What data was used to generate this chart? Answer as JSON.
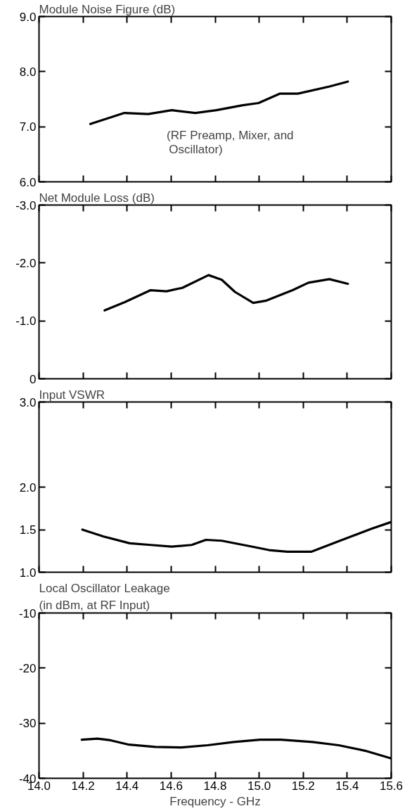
{
  "chart_data": [
    {
      "type": "line",
      "title": "Module Noise Figure (dB)",
      "annotations": [
        "(RF Preamp, Mixer, and\nOscillator)"
      ],
      "x": [
        14.233,
        14.388,
        14.496,
        14.603,
        14.71,
        14.806,
        14.925,
        14.997,
        15.093,
        15.176,
        15.319,
        15.403
      ],
      "series": [
        {
          "color": "#000000",
          "values": [
            7.05,
            7.25,
            7.23,
            7.3,
            7.25,
            7.3,
            7.39,
            7.43,
            7.6,
            7.6,
            7.73,
            7.82
          ]
        }
      ],
      "xlim": [
        14.0,
        15.6
      ],
      "xticks": [
        {
          "value": 14.0,
          "label": null
        },
        {
          "value": 14.2,
          "label": null
        },
        {
          "value": 14.4,
          "label": null
        },
        {
          "value": 14.6,
          "label": null
        },
        {
          "value": 14.8,
          "label": null
        },
        {
          "value": 15.0,
          "label": null
        },
        {
          "value": 15.2,
          "label": null
        },
        {
          "value": 15.4,
          "label": null
        },
        {
          "value": 15.6,
          "label": null
        }
      ],
      "ylim": [
        6,
        9
      ],
      "yticks": [
        {
          "value": 6,
          "label": "6.0"
        },
        {
          "value": 7,
          "label": "7.0"
        },
        {
          "value": 8,
          "label": "8.0"
        },
        {
          "value": 9,
          "label": "9.0"
        }
      ],
      "tick_labels": "y",
      "grid": false,
      "marker": "none",
      "line_style": "solid"
    },
    {
      "type": "line",
      "title": "Net Module Loss (dB)",
      "x": [
        14.298,
        14.388,
        14.507,
        14.579,
        14.651,
        14.77,
        14.83,
        14.89,
        14.973,
        15.033,
        15.152,
        15.224,
        15.319,
        15.403
      ],
      "series": [
        {
          "color": "#000000",
          "values": [
            -1.18,
            -1.32,
            -1.53,
            -1.51,
            -1.57,
            -1.79,
            -1.71,
            -1.5,
            -1.31,
            -1.35,
            -1.53,
            -1.66,
            -1.72,
            -1.64
          ]
        }
      ],
      "xlim": [
        14.0,
        15.6
      ],
      "xticks": [
        {
          "value": 14.0,
          "label": null
        },
        {
          "value": 14.2,
          "label": null
        },
        {
          "value": 14.4,
          "label": null
        },
        {
          "value": 14.6,
          "label": null
        },
        {
          "value": 14.8,
          "label": null
        },
        {
          "value": 15.0,
          "label": null
        },
        {
          "value": 15.2,
          "label": null
        },
        {
          "value": 15.4,
          "label": null
        },
        {
          "value": 15.6,
          "label": null
        }
      ],
      "ylim": [
        0,
        -3
      ],
      "yticks": [
        0,
        {
          "value": -1,
          "label": "-1.0"
        },
        {
          "value": -2,
          "label": "-2.0"
        },
        {
          "value": -3,
          "label": "-3.0"
        }
      ],
      "tick_labels": "y",
      "grid": false,
      "marker": "none",
      "line_style": "solid"
    },
    {
      "type": "line",
      "title": "Input VSWR",
      "x": [
        14.197,
        14.293,
        14.412,
        14.507,
        14.603,
        14.693,
        14.758,
        14.83,
        14.949,
        15.045,
        15.128,
        15.236,
        15.367,
        15.51,
        15.6
      ],
      "series": [
        {
          "color": "#000000",
          "values": [
            1.5,
            1.42,
            1.34,
            1.32,
            1.3,
            1.32,
            1.38,
            1.37,
            1.31,
            1.26,
            1.24,
            1.24,
            1.37,
            1.51,
            1.59
          ]
        }
      ],
      "xlim": [
        14.0,
        15.6
      ],
      "xticks": [
        {
          "value": 14.0,
          "label": null
        },
        {
          "value": 14.2,
          "label": null
        },
        {
          "value": 14.4,
          "label": null
        },
        {
          "value": 14.6,
          "label": null
        },
        {
          "value": 14.8,
          "label": null
        },
        {
          "value": 15.0,
          "label": null
        },
        {
          "value": 15.2,
          "label": null
        },
        {
          "value": 15.4,
          "label": null
        },
        {
          "value": 15.6,
          "label": null
        }
      ],
      "ylim": [
        1.0,
        3.0
      ],
      "yticks": [
        {
          "value": 1,
          "label": "1.0"
        },
        1.5,
        {
          "value": 2,
          "label": "2.0"
        },
        {
          "value": 3,
          "label": "3.0"
        }
      ],
      "tick_labels": "y",
      "grid": false,
      "marker": "none",
      "line_style": "solid"
    },
    {
      "type": "line",
      "title": "Local Oscillator Leakage\n(in dBm, at RF Input)",
      "xlabel": "Frequency - GHz",
      "x": [
        14.194,
        14.266,
        14.325,
        14.409,
        14.528,
        14.647,
        14.766,
        14.885,
        15.004,
        15.099,
        15.242,
        15.361,
        15.481,
        15.6
      ],
      "series": [
        {
          "color": "#000000",
          "values": [
            -33.0,
            -32.8,
            -33.1,
            -33.9,
            -34.3,
            -34.4,
            -34.0,
            -33.4,
            -33.0,
            -33.0,
            -33.4,
            -34.0,
            -35.0,
            -36.4
          ]
        }
      ],
      "xlim": [
        14.0,
        15.6
      ],
      "xticks": [
        {
          "value": 14.0,
          "label": "14.0"
        },
        14.2,
        14.4,
        14.6,
        14.8,
        {
          "value": 15.0,
          "label": "15.0"
        },
        15.2,
        15.4,
        15.6
      ],
      "ylim": [
        -40,
        -10
      ],
      "yticks": [
        -40,
        -30,
        -20,
        -10
      ],
      "grid": false,
      "marker": "none",
      "line_style": "solid"
    }
  ]
}
